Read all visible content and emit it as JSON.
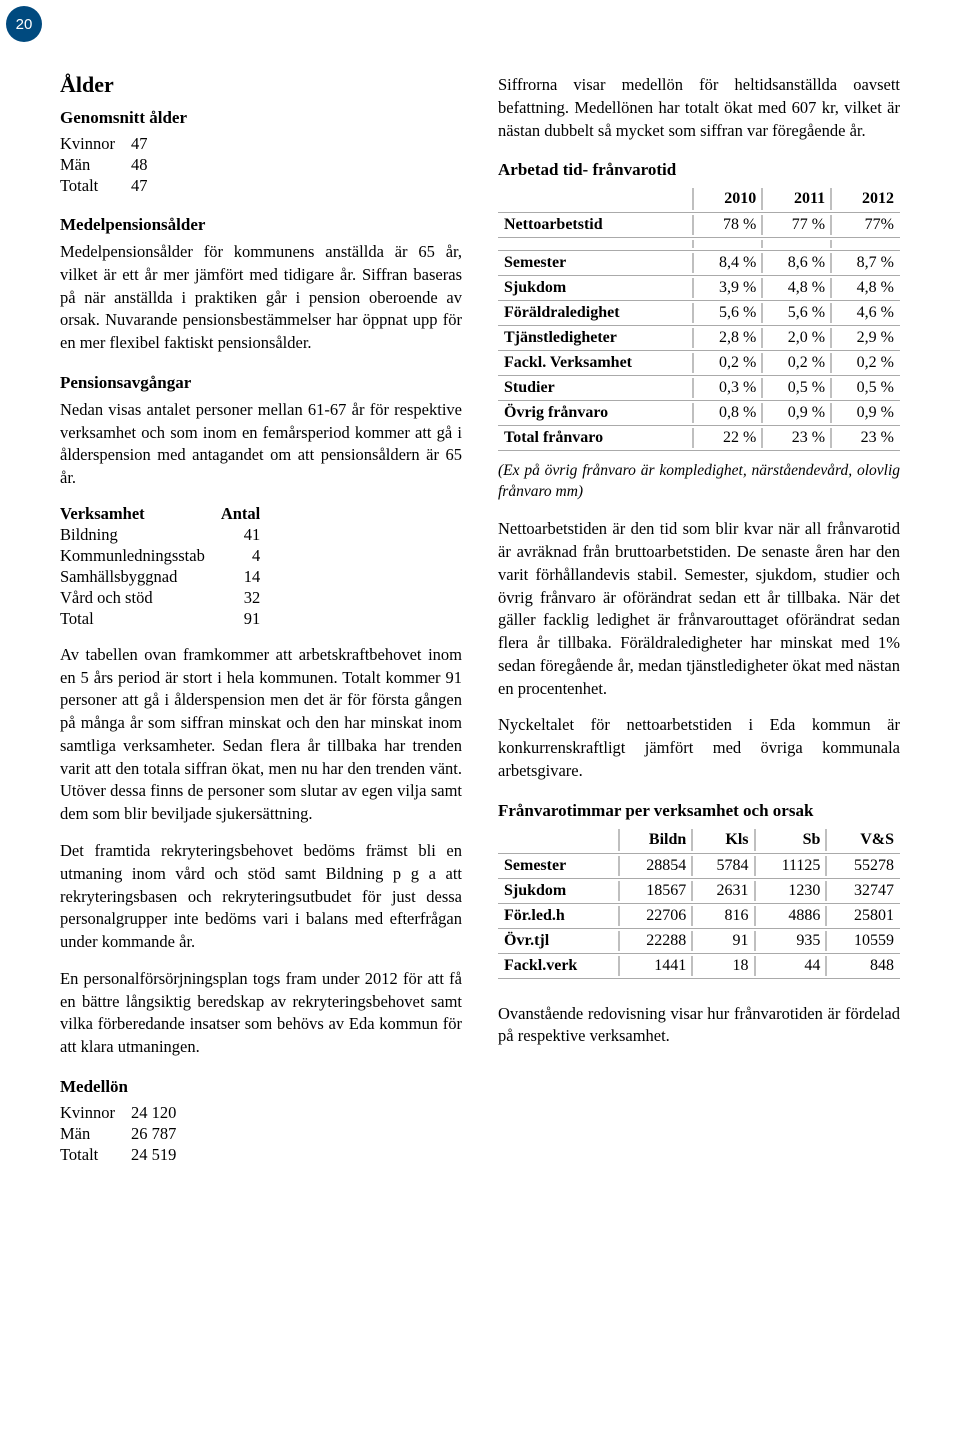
{
  "page_number": "20",
  "left": {
    "h_alder": "Ålder",
    "h_genomsnitt": "Genomsnitt ålder",
    "age_rows": [
      {
        "label": "Kvinnor",
        "value": "47"
      },
      {
        "label": "Män",
        "value": "48"
      },
      {
        "label": "Totalt",
        "value": "47"
      }
    ],
    "h_medelpension": "Medelpensionsålder",
    "p_medelpension": "Medelpensionsålder för kommunens anställda är 65 år, vilket är ett år mer jämfört med tidigare år. Siffran baseras på när anställda i praktiken går i pension oberoende av orsak. Nuvarande pensionsbestämmelser har öppnat upp för en mer flexibel faktiskt pensionsålder.",
    "h_pensionsavg": "Pensionsavgångar",
    "p_pensionsavg": "Nedan visas antalet personer mellan 61-67 år för respektive verksamhet och som inom en femårsperiod kommer att gå i ålderspension med antagandet om att pensionsåldern är 65 år.",
    "verk_head_label": "Verksamhet",
    "verk_head_val": "Antal",
    "verk_rows": [
      {
        "label": "Bildning",
        "value": "41"
      },
      {
        "label": "Kommunledningsstab",
        "value": "4"
      },
      {
        "label": "Samhällsbyggnad",
        "value": "14"
      },
      {
        "label": "Vård och stöd",
        "value": "32"
      },
      {
        "label": "Total",
        "value": "91"
      }
    ],
    "p_av_tabellen": "Av tabellen ovan framkommer att arbetskraftbehovet inom en 5 års period är stort i hela kommunen. Totalt kommer 91 personer att gå i ålderspension men det är för första gången på många år som siffran minskat och den har minskat inom samtliga verksamheter. Sedan flera år tillbaka har trenden varit att den totala siffran ökat, men nu har den trenden vänt. Utöver dessa finns de personer som slutar av egen vilja samt dem som blir beviljade sjukersättning.",
    "p_framtida": "Det framtida rekryteringsbehovet bedöms främst bli en utmaning inom vård och stöd samt Bildning p g a att rekryteringsbasen och rekryteringsutbudet för just dessa personalgrupper inte bedöms vari i balans med efterfrågan under kommande år.",
    "p_plan2012": "En personalförsörjningsplan togs fram under 2012 för att få en bättre långsiktig beredskap av rekryteringsbehovet samt vilka förberedande insatser som behövs av Eda kommun för att klara utmaningen.",
    "h_medellon": "Medellön",
    "lon_rows": [
      {
        "label": "Kvinnor",
        "value": "24 120"
      },
      {
        "label": "Män",
        "value": "26 787"
      },
      {
        "label": "Totalt",
        "value": "24 519"
      }
    ]
  },
  "right": {
    "p_siffrorna": "Siffrorna visar medellön för heltidsanställda oavsett befattning. Medellönen har totalt ökat med 607 kr, vilket är nästan dubbelt så mycket som siffran var föregående år.",
    "h_arbetad": "Arbetad tid- frånvarotid",
    "nat_table": {
      "head": [
        "",
        "2010",
        "2011",
        "2012"
      ],
      "rows": [
        {
          "label": "Nettoarbetstid",
          "c1": "78 %",
          "c2": "77 %",
          "c3": "77%",
          "bold": true
        },
        {
          "spacer": true
        },
        {
          "label": "Semester",
          "c1": "8,4 %",
          "c2": "8,6 %",
          "c3": "8,7 %",
          "bold": true
        },
        {
          "label": "Sjukdom",
          "c1": "3,9 %",
          "c2": "4,8 %",
          "c3": "4,8 %",
          "bold": true
        },
        {
          "label": "Föräldraledighet",
          "c1": "5,6 %",
          "c2": "5,6 %",
          "c3": "4,6 %",
          "bold": true
        },
        {
          "label": "Tjänstledigheter",
          "c1": "2,8 %",
          "c2": "2,0 %",
          "c3": "2,9 %",
          "bold": true
        },
        {
          "label": "Fackl. Verksamhet",
          "c1": "0,2 %",
          "c2": "0,2 %",
          "c3": "0,2 %",
          "bold": true
        },
        {
          "label": "Studier",
          "c1": "0,3 %",
          "c2": "0,5 %",
          "c3": "0,5 %",
          "bold": true
        },
        {
          "label": "Övrig frånvaro",
          "c1": "0,8 %",
          "c2": "0,9 %",
          "c3": "0,9 %",
          "bold": true
        },
        {
          "label": "Total frånvaro",
          "c1": "22 %",
          "c2": "23 %",
          "c3": "23 %",
          "bold": true
        }
      ]
    },
    "note_ex": "(Ex på övrig frånvaro är kompledighet, närståendevård, olovlig frånvaro mm)",
    "p_nettoarbet": "Nettoarbetstiden är den tid som blir kvar när all frånvarotid är avräknad från bruttoarbetstiden. De senaste åren har den varit förhållandevis stabil. Semester, sjukdom, studier och övrig frånvaro är oförändrat sedan ett år tillbaka. När det gäller facklig ledighet är frånvarouttaget oförändrat sedan flera år tillbaka. Föräldraledigheter har minskat med 1% sedan föregående år, medan tjänstledigheter ökat med nästan en procentenhet.",
    "p_nyckeltal": "Nyckeltalet för nettoarbetstiden i Eda kommun är konkurrenskraftligt jämfört med övriga kommunala arbetsgivare.",
    "h_franvaro_tbl": "Frånvarotimmar per verksamhet och orsak",
    "fran_table": {
      "head": [
        "",
        "Bildn",
        "Kls",
        "Sb",
        "V&S"
      ],
      "rows": [
        {
          "label": "Semester",
          "c1": "28854",
          "c2": "5784",
          "c3": "11125",
          "c4": "55278"
        },
        {
          "label": "Sjukdom",
          "c1": "18567",
          "c2": "2631",
          "c3": "1230",
          "c4": "32747"
        },
        {
          "label": "För.led.h",
          "c1": "22706",
          "c2": "816",
          "c3": "4886",
          "c4": "25801"
        },
        {
          "label": "Övr.tjl",
          "c1": "22288",
          "c2": "91",
          "c3": "935",
          "c4": "10559"
        },
        {
          "label": "Fackl.verk",
          "c1": "1441",
          "c2": "18",
          "c3": "44",
          "c4": "848"
        }
      ]
    },
    "p_ovanst": "Ovanstående redovisning visar hur frånvarotiden är fördelad på respektive verksamhet."
  }
}
